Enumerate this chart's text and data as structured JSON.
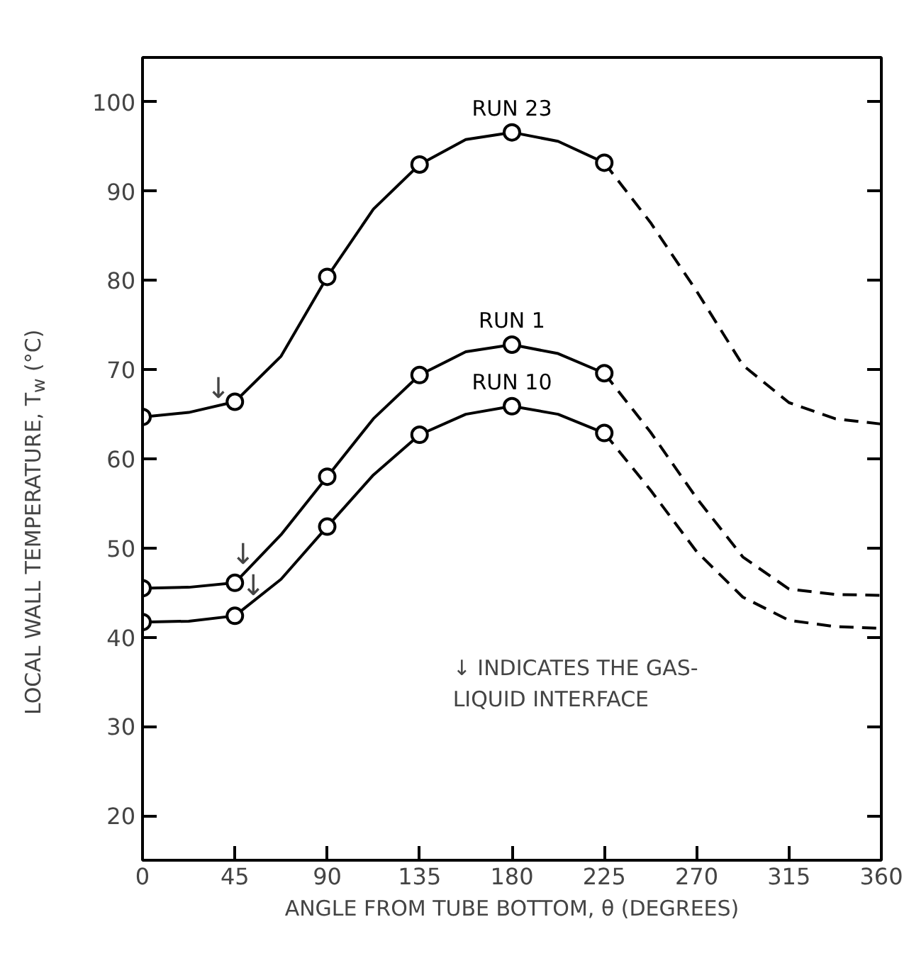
{
  "chart_data": {
    "type": "line",
    "xlabel": "ANGLE FROM TUBE BOTTOM, θ (DEGREES)",
    "ylabel": "LOCAL WALL TEMPERATURE, T$_{w}$ (°C)",
    "xlim": [
      0,
      360
    ],
    "xticks": [
      0,
      45,
      90,
      135,
      180,
      225,
      270,
      315,
      360
    ],
    "ylim": [
      15,
      105
    ],
    "yticks": [
      20,
      30,
      40,
      50,
      60,
      70,
      80,
      90,
      100
    ],
    "grid": false,
    "series": [
      {
        "name": "RUN 23",
        "color": "#000000",
        "marker": "none",
        "line_style": "solid",
        "x": [
          0,
          22.5,
          45,
          67.5,
          90,
          112.5,
          135,
          157.5,
          180,
          202.5,
          225
        ],
        "values": [
          64.7,
          65.2,
          66.4,
          71.5,
          80.4,
          88.0,
          93.0,
          95.8,
          96.6,
          95.6,
          93.2
        ]
      },
      {
        "name": "RUN 1",
        "color": "#000000",
        "marker": "none",
        "line_style": "solid",
        "x": [
          0,
          22.5,
          45,
          67.5,
          90,
          112.5,
          135,
          157.5,
          180,
          202.5,
          225
        ],
        "values": [
          45.5,
          45.6,
          46.1,
          51.5,
          58.0,
          64.5,
          69.4,
          72.0,
          72.8,
          71.8,
          69.6
        ]
      },
      {
        "name": "RUN 10",
        "color": "#000000",
        "marker": "none",
        "line_style": "solid",
        "x": [
          0,
          22.5,
          45,
          67.5,
          90,
          112.5,
          135,
          157.5,
          180,
          202.5,
          225
        ],
        "values": [
          41.7,
          41.8,
          42.4,
          46.5,
          52.4,
          58.2,
          62.7,
          65.0,
          65.9,
          65.0,
          62.9
        ]
      },
      {
        "color": "#000000",
        "marker": "none",
        "line_style": "dashed",
        "x": [
          225,
          247.5,
          270,
          292.5,
          315,
          337.5,
          360
        ],
        "values": [
          93.2,
          86.5,
          78.8,
          70.5,
          66.3,
          64.5,
          63.9
        ]
      },
      {
        "color": "#000000",
        "marker": "none",
        "line_style": "dashed",
        "x": [
          225,
          247.5,
          270,
          292.5,
          315,
          337.5,
          360
        ],
        "values": [
          69.6,
          63.0,
          55.6,
          49.0,
          45.4,
          44.8,
          44.7
        ]
      },
      {
        "color": "#000000",
        "marker": "none",
        "line_style": "dashed",
        "x": [
          225,
          247.5,
          270,
          292.5,
          315,
          337.5,
          360
        ],
        "values": [
          62.9,
          56.5,
          49.6,
          44.5,
          41.9,
          41.2,
          41.0
        ]
      },
      {
        "type": "scatter",
        "color": "#000000",
        "marker": "circle",
        "x": [
          0,
          45,
          90,
          135,
          180,
          225
        ],
        "values": [
          64.7,
          66.4,
          80.4,
          93.0,
          96.6,
          93.2
        ]
      },
      {
        "type": "scatter",
        "color": "#000000",
        "marker": "circle",
        "x": [
          0,
          45,
          90,
          135,
          180,
          225
        ],
        "values": [
          45.5,
          46.1,
          58.0,
          69.4,
          72.8,
          69.6
        ]
      },
      {
        "type": "scatter",
        "color": "#000000",
        "marker": "circle",
        "x": [
          0,
          45,
          90,
          135,
          180,
          225
        ],
        "values": [
          41.7,
          42.4,
          52.4,
          62.7,
          65.9,
          62.9
        ]
      }
    ],
    "annotations": [
      {
        "text": "↓",
        "x": 37,
        "y": 65.6
      },
      {
        "text": "↓",
        "x": 49,
        "y": 47.0
      },
      {
        "text": "↓",
        "x": 54,
        "y": 43.5
      },
      "↓ INDICATES THE GAS-\nLIQUID INTERFACE"
    ]
  }
}
